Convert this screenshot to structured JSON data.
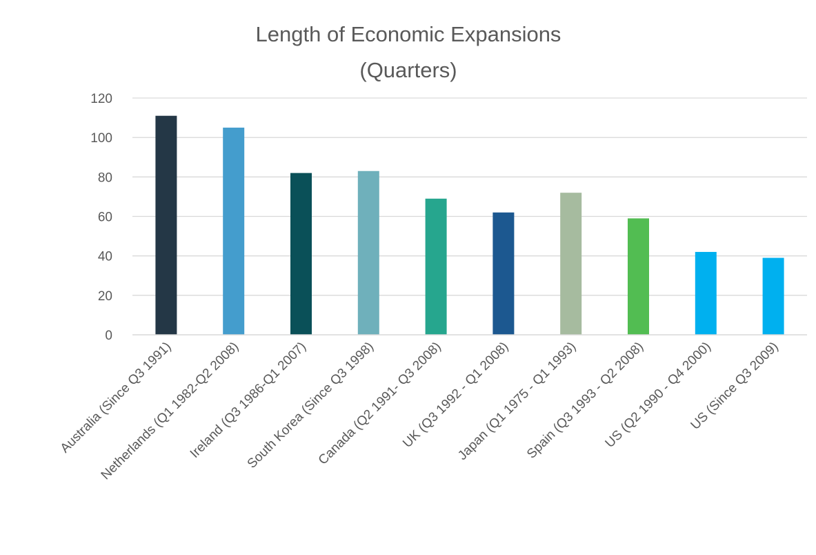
{
  "chart_data": {
    "type": "bar",
    "title": [
      "Length of Economic Expansions",
      "(Quarters)"
    ],
    "xlabel": "",
    "ylabel": "",
    "ylim": [
      0,
      120
    ],
    "yticks": [
      0,
      20,
      40,
      60,
      80,
      100,
      120
    ],
    "grid": true,
    "legend": "none",
    "categories": [
      "Australia (Since Q3 1991)",
      "Netherlands (Q1 1982-Q2 2008)",
      "Ireland (Q3 1986-Q1 2007)",
      "South Korea (Since Q3 1998)",
      "Canada (Q2 1991- Q3 2008)",
      "UK (Q3 1992 - Q1 2008)",
      "Japan (Q1 1975 - Q1 1993)",
      "Spain (Q3 1993 - Q2 2008)",
      "US (Q2 1990 - Q4 2000)",
      "US (Since Q3 2009)"
    ],
    "values": [
      111,
      105,
      82,
      83,
      69,
      62,
      72,
      59,
      42,
      39
    ],
    "colors": [
      "#243746",
      "#449dcd",
      "#0a5058",
      "#6fb0bb",
      "#26a68e",
      "#1c5890",
      "#a6bb9f",
      "#52bd52",
      "#00b0ef",
      "#00b0ef"
    ]
  }
}
